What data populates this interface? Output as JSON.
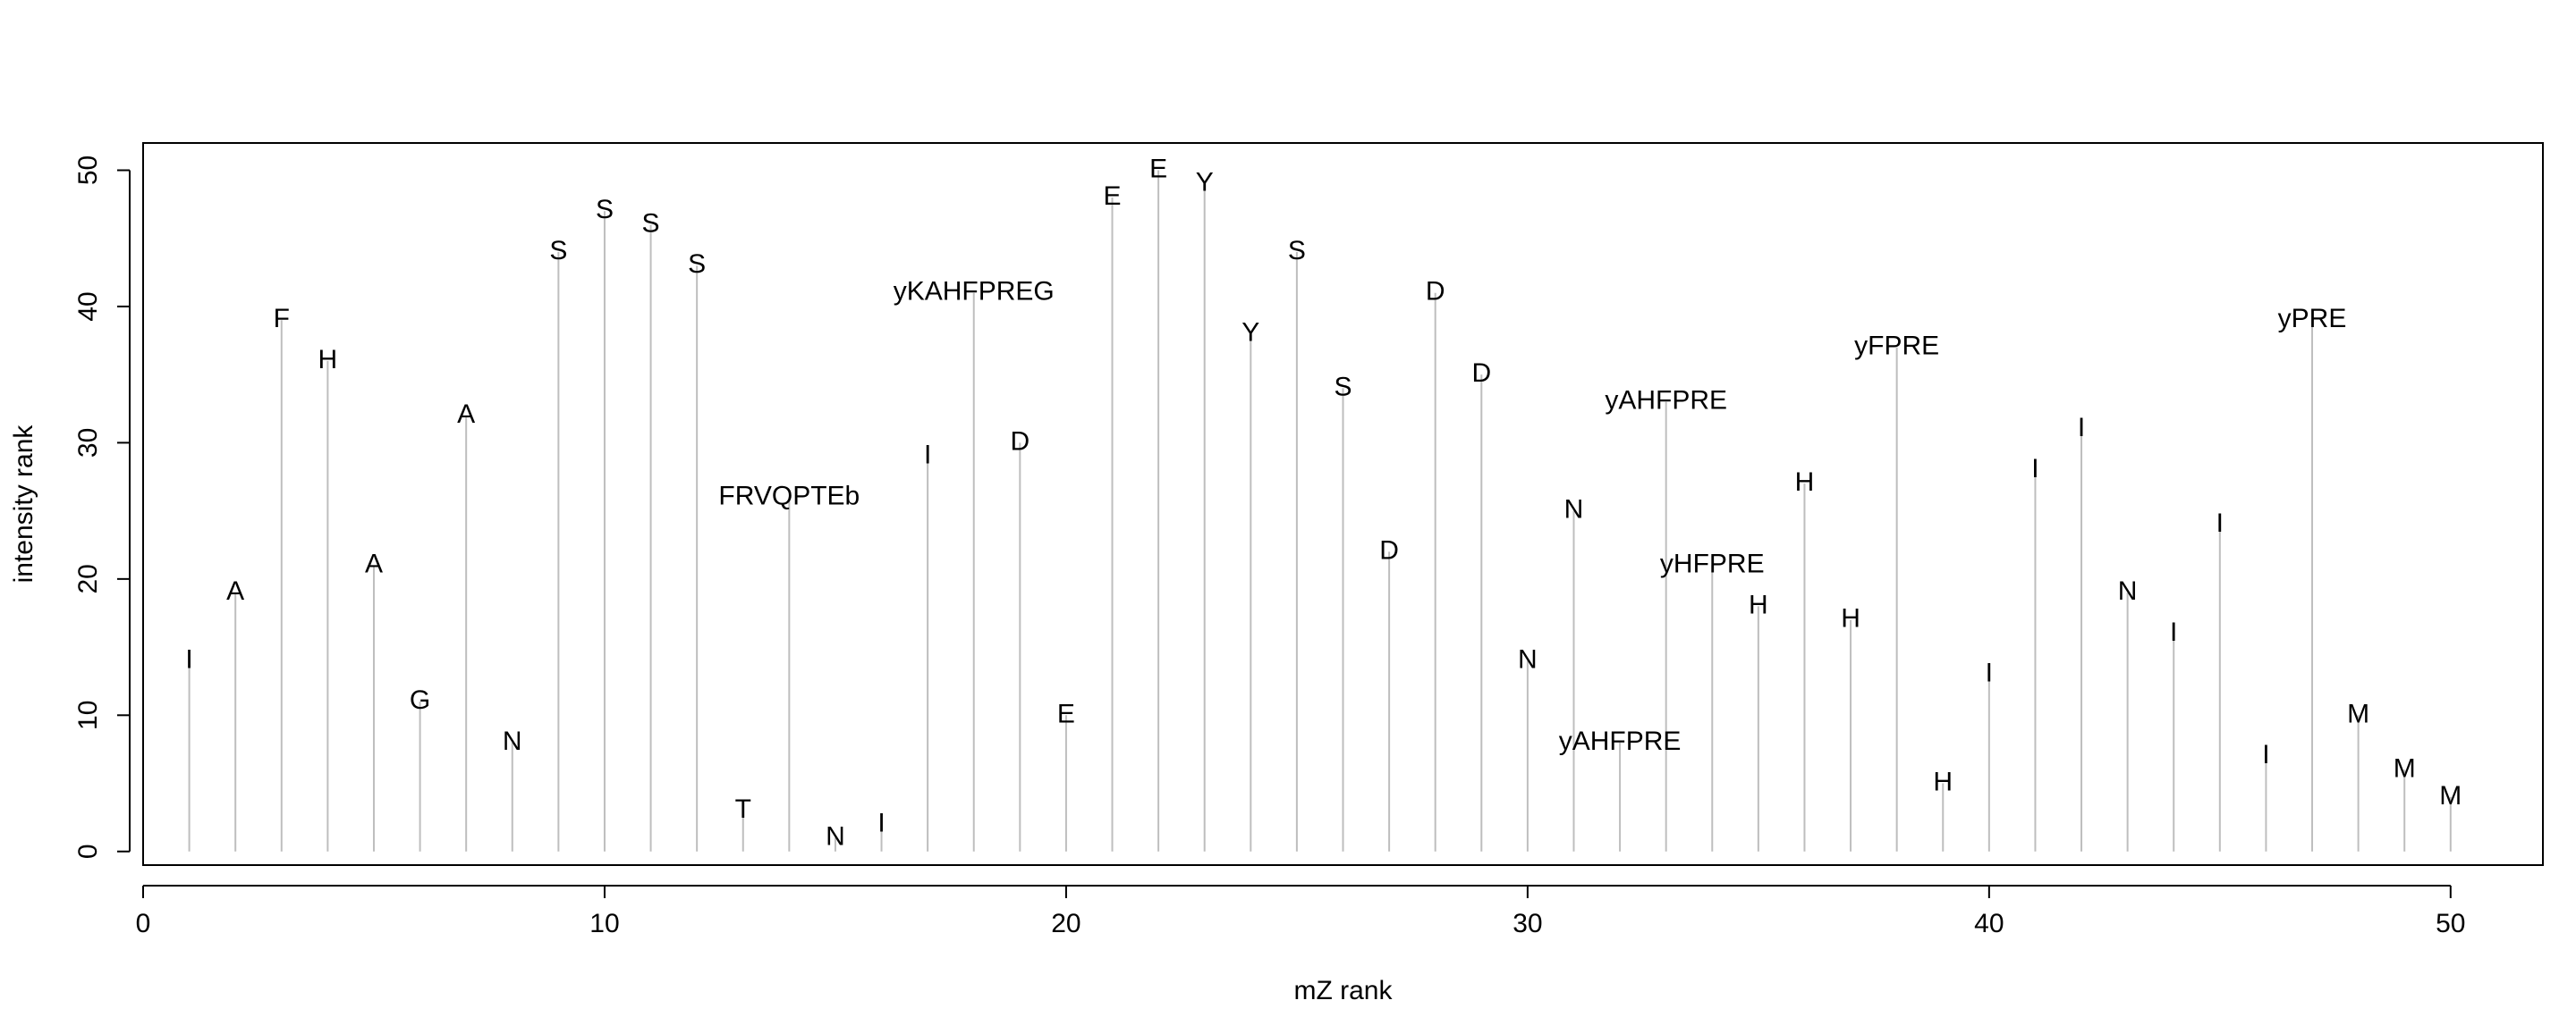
{
  "chart_data": {
    "type": "bar",
    "title": "",
    "xlabel": "mZ rank",
    "ylabel": "intensity rank",
    "xlim": [
      0,
      52
    ],
    "ylim": [
      -1,
      52
    ],
    "xticks": [
      0,
      10,
      20,
      30,
      40,
      50
    ],
    "yticks": [
      0,
      10,
      20,
      30,
      40,
      50
    ],
    "grid": false,
    "colors": {
      "stick": "#bebebe",
      "axis": "#000000",
      "text": "#000000"
    },
    "points": [
      {
        "x": 1,
        "y": 14,
        "label": "I"
      },
      {
        "x": 2,
        "y": 19,
        "label": "A"
      },
      {
        "x": 3,
        "y": 39,
        "label": "F"
      },
      {
        "x": 4,
        "y": 36,
        "label": "H"
      },
      {
        "x": 5,
        "y": 21,
        "label": "A"
      },
      {
        "x": 6,
        "y": 11,
        "label": "G"
      },
      {
        "x": 7,
        "y": 32,
        "label": "A"
      },
      {
        "x": 8,
        "y": 8,
        "label": "N"
      },
      {
        "x": 9,
        "y": 44,
        "label": "S"
      },
      {
        "x": 10,
        "y": 47,
        "label": "S"
      },
      {
        "x": 11,
        "y": 46,
        "label": "S"
      },
      {
        "x": 12,
        "y": 43,
        "label": "S"
      },
      {
        "x": 13,
        "y": 3,
        "label": "T"
      },
      {
        "x": 14,
        "y": 26,
        "label": "FRVQPTEb"
      },
      {
        "x": 15,
        "y": 1,
        "label": "N"
      },
      {
        "x": 16,
        "y": 2,
        "label": "I"
      },
      {
        "x": 17,
        "y": 29,
        "label": "I"
      },
      {
        "x": 18,
        "y": 41,
        "label": "yKAHFPREG"
      },
      {
        "x": 19,
        "y": 30,
        "label": "D"
      },
      {
        "x": 20,
        "y": 10,
        "label": "E"
      },
      {
        "x": 21,
        "y": 48,
        "label": "E"
      },
      {
        "x": 22,
        "y": 50,
        "label": "E"
      },
      {
        "x": 23,
        "y": 49,
        "label": "Y"
      },
      {
        "x": 24,
        "y": 38,
        "label": "Y"
      },
      {
        "x": 25,
        "y": 44,
        "label": "S"
      },
      {
        "x": 26,
        "y": 34,
        "label": "S"
      },
      {
        "x": 27,
        "y": 22,
        "label": "D"
      },
      {
        "x": 28,
        "y": 41,
        "label": "D"
      },
      {
        "x": 29,
        "y": 35,
        "label": "D"
      },
      {
        "x": 30,
        "y": 14,
        "label": "N"
      },
      {
        "x": 31,
        "y": 25,
        "label": "N"
      },
      {
        "x": 32,
        "y": 8,
        "label": "yAHFPRE"
      },
      {
        "x": 33,
        "y": 33,
        "label": "yAHFPRE"
      },
      {
        "x": 34,
        "y": 21,
        "label": "yHFPRE"
      },
      {
        "x": 35,
        "y": 18,
        "label": "H"
      },
      {
        "x": 36,
        "y": 27,
        "label": "H"
      },
      {
        "x": 37,
        "y": 17,
        "label": "H"
      },
      {
        "x": 38,
        "y": 37,
        "label": "yFPRE"
      },
      {
        "x": 39,
        "y": 5,
        "label": "H"
      },
      {
        "x": 40,
        "y": 13,
        "label": "I"
      },
      {
        "x": 41,
        "y": 28,
        "label": "I"
      },
      {
        "x": 42,
        "y": 31,
        "label": "I"
      },
      {
        "x": 43,
        "y": 19,
        "label": "N"
      },
      {
        "x": 44,
        "y": 16,
        "label": "I"
      },
      {
        "x": 45,
        "y": 24,
        "label": "I"
      },
      {
        "x": 46,
        "y": 7,
        "label": "I"
      },
      {
        "x": 47,
        "y": 39,
        "label": "yPRE"
      },
      {
        "x": 48,
        "y": 10,
        "label": "M"
      },
      {
        "x": 49,
        "y": 6,
        "label": "M"
      },
      {
        "x": 50,
        "y": 4,
        "label": "M"
      }
    ]
  }
}
